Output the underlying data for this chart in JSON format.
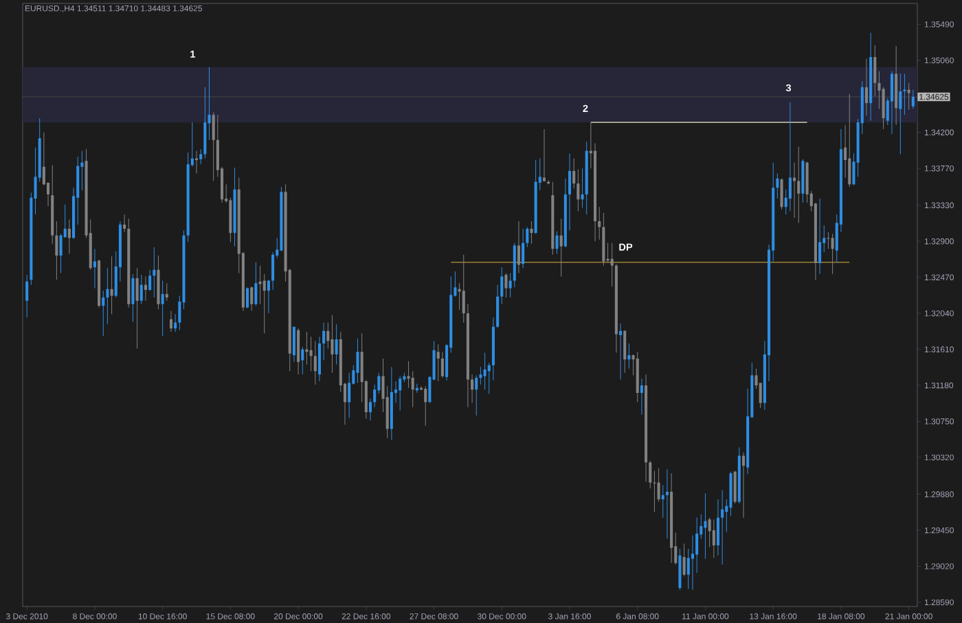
{
  "chart_data": {
    "type": "candlestick",
    "title": "EURUSD.,H4 1.34511 1.34710 1.34483 1.34625",
    "categories": [
      "3 Dec 2010",
      null,
      null,
      null,
      null,
      null,
      null,
      null,
      null,
      null,
      null,
      null,
      null,
      null,
      null,
      null,
      "8 Dec 00:00",
      null,
      null,
      null,
      null,
      null,
      null,
      null,
      null,
      null,
      null,
      null,
      null,
      null,
      null,
      null,
      "10 Dec 16:00",
      null,
      null,
      null,
      null,
      null,
      null,
      null,
      null,
      null,
      null,
      null,
      null,
      null,
      null,
      null,
      "15 Dec 08:00",
      null,
      null,
      null,
      null,
      null,
      null,
      null,
      null,
      null,
      null,
      null,
      null,
      null,
      null,
      null,
      "20 Dec 00:00",
      null,
      null,
      null,
      null,
      null,
      null,
      null,
      null,
      null,
      null,
      null,
      null,
      null,
      null,
      null,
      "22 Dec 16:00",
      null,
      null,
      null,
      null,
      null,
      null,
      null,
      null,
      null,
      null,
      null,
      null,
      null,
      null,
      null,
      "27 Dec 08:00",
      null,
      null,
      null,
      null,
      null,
      null,
      null,
      null,
      null,
      null,
      null,
      null,
      null,
      null,
      null,
      "30 Dec 00:00",
      null,
      null,
      null,
      null,
      null,
      null,
      null,
      null,
      null,
      null,
      null,
      null,
      null,
      null,
      null,
      "3 Jan 16:00",
      null,
      null,
      null,
      null,
      null,
      null,
      null,
      null,
      null,
      null,
      null,
      null,
      null,
      null,
      null,
      "6 Jan 08:00",
      null,
      null,
      null,
      null,
      null,
      null,
      null,
      null,
      null,
      null,
      null,
      null,
      null,
      null,
      null,
      "11 Jan 00:00",
      null,
      null,
      null,
      null,
      null,
      null,
      null,
      null,
      null,
      null,
      null,
      null,
      null,
      null,
      null,
      "13 Jan 16:00",
      null,
      null,
      null,
      null,
      null,
      null,
      null,
      null,
      null,
      null,
      null,
      null,
      null,
      null,
      null,
      "18 Jan 08:00",
      null,
      null,
      null,
      null,
      null,
      null,
      null,
      null,
      null,
      null,
      null,
      null,
      null,
      null,
      null,
      "21 Jan 00:00",
      null
    ],
    "ohlc": [
      [
        1.3219,
        1.325,
        1.3199,
        1.3242
      ],
      [
        1.3244,
        1.3348,
        1.3238,
        1.3342
      ],
      [
        1.3341,
        1.3402,
        1.3322,
        1.3367
      ],
      [
        1.3366,
        1.3437,
        1.3361,
        1.3413
      ],
      [
        1.3379,
        1.342,
        1.3357,
        1.3358
      ],
      [
        1.336,
        1.336,
        1.3332,
        1.3346
      ],
      [
        1.3345,
        1.3381,
        1.3287,
        1.3297
      ],
      [
        1.3297,
        1.3314,
        1.3244,
        1.3273
      ],
      [
        1.3273,
        1.3299,
        1.3252,
        1.3297
      ],
      [
        1.3295,
        1.3334,
        1.3294,
        1.3305
      ],
      [
        1.3305,
        1.3316,
        1.3275,
        1.3294
      ],
      [
        1.3294,
        1.3354,
        1.3293,
        1.3344
      ],
      [
        1.3342,
        1.3391,
        1.331,
        1.338
      ],
      [
        1.3379,
        1.3398,
        1.3351,
        1.3384
      ],
      [
        1.3386,
        1.34,
        1.3294,
        1.3297
      ],
      [
        1.33,
        1.3316,
        1.3256,
        1.3258
      ],
      [
        1.3259,
        1.3281,
        1.3234,
        1.3266
      ],
      [
        1.3267,
        1.3268,
        1.3211,
        1.3213
      ],
      [
        1.3213,
        1.3231,
        1.3177,
        1.3223
      ],
      [
        1.3223,
        1.3258,
        1.3191,
        1.3233
      ],
      [
        1.3233,
        1.3272,
        1.3203,
        1.3225
      ],
      [
        1.3225,
        1.3278,
        1.3223,
        1.326
      ],
      [
        1.3259,
        1.3314,
        1.3242,
        1.331
      ],
      [
        1.331,
        1.3322,
        1.3301,
        1.3305
      ],
      [
        1.3305,
        1.3317,
        1.3211,
        1.3215
      ],
      [
        1.3215,
        1.3251,
        1.3194,
        1.3246
      ],
      [
        1.3246,
        1.3258,
        1.3162,
        1.3219
      ],
      [
        1.3219,
        1.325,
        1.3215,
        1.3238
      ],
      [
        1.3238,
        1.3248,
        1.3219,
        1.3232
      ],
      [
        1.3232,
        1.3256,
        1.3231,
        1.3249
      ],
      [
        1.3249,
        1.3283,
        1.3223,
        1.3256
      ],
      [
        1.3256,
        1.3273,
        1.3209,
        1.3215
      ],
      [
        1.3215,
        1.3243,
        1.3177,
        1.3227
      ],
      [
        1.3227,
        1.324,
        1.3219,
        1.3223
      ],
      [
        1.3197,
        1.3207,
        1.3182,
        1.3186
      ],
      [
        1.3186,
        1.3203,
        1.3182,
        1.3193
      ],
      [
        1.3193,
        1.3225,
        1.3184,
        1.3218
      ],
      [
        1.3217,
        1.3303,
        1.3209,
        1.3297
      ],
      [
        1.3297,
        1.3396,
        1.3289,
        1.3382
      ],
      [
        1.3381,
        1.3432,
        1.3379,
        1.3389
      ],
      [
        1.3389,
        1.3398,
        1.3371,
        1.3387
      ],
      [
        1.3388,
        1.34,
        1.3382,
        1.3394
      ],
      [
        1.3394,
        1.3474,
        1.3389,
        1.3432
      ],
      [
        1.3431,
        1.3498,
        1.3411,
        1.3441
      ],
      [
        1.3441,
        1.3444,
        1.3362,
        1.3411
      ],
      [
        1.3411,
        1.3441,
        1.3367,
        1.3375
      ],
      [
        1.3377,
        1.3379,
        1.3336,
        1.334
      ],
      [
        1.3341,
        1.3358,
        1.3336,
        1.3338
      ],
      [
        1.3339,
        1.3342,
        1.3289,
        1.33
      ],
      [
        1.33,
        1.3378,
        1.3284,
        1.3352
      ],
      [
        1.3352,
        1.3366,
        1.3252,
        1.3275
      ],
      [
        1.3276,
        1.3277,
        1.3207,
        1.3211
      ],
      [
        1.3211,
        1.3235,
        1.321,
        1.3234
      ],
      [
        1.3235,
        1.3236,
        1.3207,
        1.3215
      ],
      [
        1.3215,
        1.3265,
        1.3213,
        1.324
      ],
      [
        1.3242,
        1.3261,
        1.3215,
        1.3239
      ],
      [
        1.3243,
        1.3251,
        1.318,
        1.3231
      ],
      [
        1.3231,
        1.3244,
        1.3204,
        1.3243
      ],
      [
        1.3243,
        1.3277,
        1.3232,
        1.3274
      ],
      [
        1.3273,
        1.3294,
        1.327,
        1.328
      ],
      [
        1.3279,
        1.3355,
        1.3278,
        1.3349
      ],
      [
        1.3349,
        1.3358,
        1.3242,
        1.3254
      ],
      [
        1.3256,
        1.3257,
        1.3135,
        1.3156
      ],
      [
        1.3154,
        1.3188,
        1.3146,
        1.3188
      ],
      [
        1.3184,
        1.3186,
        1.3131,
        1.3146
      ],
      [
        1.3148,
        1.3164,
        1.3131,
        1.3161
      ],
      [
        1.3161,
        1.3182,
        1.3143,
        1.3158
      ],
      [
        1.316,
        1.3176,
        1.3135,
        1.3153
      ],
      [
        1.3153,
        1.3171,
        1.3119,
        1.3135
      ],
      [
        1.3131,
        1.3176,
        1.3123,
        1.3168
      ],
      [
        1.3168,
        1.3193,
        1.3148,
        1.3183
      ],
      [
        1.3183,
        1.3193,
        1.3162,
        1.3171
      ],
      [
        1.3173,
        1.3202,
        1.3133,
        1.3155
      ],
      [
        1.3155,
        1.3191,
        1.3143,
        1.3173
      ],
      [
        1.3173,
        1.3182,
        1.311,
        1.3118
      ],
      [
        1.312,
        1.3121,
        1.3071,
        1.3098
      ],
      [
        1.3098,
        1.3133,
        1.3079,
        1.3121
      ],
      [
        1.312,
        1.3142,
        1.3119,
        1.3136
      ],
      [
        1.3133,
        1.3174,
        1.3121,
        1.3158
      ],
      [
        1.3158,
        1.318,
        1.3098,
        1.3122
      ],
      [
        1.3123,
        1.3124,
        1.3078,
        1.3086
      ],
      [
        1.3086,
        1.3102,
        1.3076,
        1.3098
      ],
      [
        1.3098,
        1.3119,
        1.3092,
        1.3113
      ],
      [
        1.3112,
        1.3133,
        1.3108,
        1.3129
      ],
      [
        1.3129,
        1.315,
        1.3086,
        1.3102
      ],
      [
        1.3104,
        1.3117,
        1.3055,
        1.3066
      ],
      [
        1.3066,
        1.314,
        1.3053,
        1.311
      ],
      [
        1.3109,
        1.3123,
        1.3097,
        1.3113
      ],
      [
        1.3112,
        1.3129,
        1.3088,
        1.3126
      ],
      [
        1.3125,
        1.3133,
        1.3122,
        1.3129
      ],
      [
        1.3129,
        1.3147,
        1.3115,
        1.3126
      ],
      [
        1.3127,
        1.3135,
        1.3092,
        1.3113
      ],
      [
        1.3112,
        1.312,
        1.3109,
        1.3115
      ],
      [
        1.3115,
        1.3117,
        1.3112,
        1.3113
      ],
      [
        1.3114,
        1.3117,
        1.307,
        1.3098
      ],
      [
        1.3098,
        1.3129,
        1.3097,
        1.3128
      ],
      [
        1.3125,
        1.3171,
        1.3124,
        1.316
      ],
      [
        1.3158,
        1.3167,
        1.3123,
        1.315
      ],
      [
        1.315,
        1.3158,
        1.3127,
        1.3129
      ],
      [
        1.3128,
        1.3167,
        1.3124,
        1.3166
      ],
      [
        1.3163,
        1.3248,
        1.3157,
        1.3226
      ],
      [
        1.3225,
        1.3254,
        1.3224,
        1.3235
      ],
      [
        1.3233,
        1.324,
        1.3208,
        1.323
      ],
      [
        1.3231,
        1.3274,
        1.3193,
        1.3204
      ],
      [
        1.3204,
        1.3215,
        1.3092,
        1.3125
      ],
      [
        1.3125,
        1.3131,
        1.3097,
        1.3113
      ],
      [
        1.3113,
        1.313,
        1.3082,
        1.3127
      ],
      [
        1.3127,
        1.314,
        1.3119,
        1.3131
      ],
      [
        1.3129,
        1.3157,
        1.3113,
        1.3137
      ],
      [
        1.3135,
        1.3145,
        1.3108,
        1.3142
      ],
      [
        1.3142,
        1.3199,
        1.3124,
        1.3188
      ],
      [
        1.3188,
        1.3238,
        1.3187,
        1.3224
      ],
      [
        1.3224,
        1.3259,
        1.3215,
        1.3248
      ],
      [
        1.325,
        1.3252,
        1.3223,
        1.3234
      ],
      [
        1.3234,
        1.3252,
        1.3223,
        1.3243
      ],
      [
        1.3243,
        1.3288,
        1.3235,
        1.3285
      ],
      [
        1.3285,
        1.3314,
        1.3252,
        1.3262
      ],
      [
        1.3263,
        1.3305,
        1.3258,
        1.3288
      ],
      [
        1.3288,
        1.3307,
        1.3283,
        1.3305
      ],
      [
        1.3305,
        1.3314,
        1.3287,
        1.33
      ],
      [
        1.33,
        1.3387,
        1.3299,
        1.3361
      ],
      [
        1.336,
        1.3389,
        1.3351,
        1.3367
      ],
      [
        1.3366,
        1.3424,
        1.3361,
        1.3362
      ],
      [
        1.3361,
        1.3363,
        1.3358,
        1.3359
      ],
      [
        1.3345,
        1.3361,
        1.3274,
        1.3281
      ],
      [
        1.3281,
        1.3302,
        1.3275,
        1.3297
      ],
      [
        1.3297,
        1.3317,
        1.3248,
        1.3284
      ],
      [
        1.3284,
        1.3365,
        1.3283,
        1.3346
      ],
      [
        1.3346,
        1.3395,
        1.3303,
        1.3374
      ],
      [
        1.3374,
        1.3389,
        1.3353,
        1.3359
      ],
      [
        1.3359,
        1.3376,
        1.3326,
        1.334
      ],
      [
        1.334,
        1.3377,
        1.333,
        1.3346
      ],
      [
        1.3346,
        1.3409,
        1.3322,
        1.3398
      ],
      [
        1.3398,
        1.3432,
        1.3377,
        1.3395
      ],
      [
        1.3398,
        1.3407,
        1.329,
        1.3314
      ],
      [
        1.3314,
        1.3331,
        1.3292,
        1.3307
      ],
      [
        1.3307,
        1.3324,
        1.3261,
        1.3266
      ],
      [
        1.3267,
        1.3288,
        1.3265,
        1.3269
      ],
      [
        1.3269,
        1.3288,
        1.3236,
        1.3261
      ],
      [
        1.3261,
        1.3263,
        1.3157,
        1.3179
      ],
      [
        1.3178,
        1.3192,
        1.3125,
        1.3183
      ],
      [
        1.3183,
        1.3184,
        1.3133,
        1.3149
      ],
      [
        1.3149,
        1.3168,
        1.3138,
        1.3154
      ],
      [
        1.3154,
        1.3155,
        1.313,
        1.3149
      ],
      [
        1.315,
        1.3158,
        1.3098,
        1.3109
      ],
      [
        1.3109,
        1.3126,
        1.3083,
        1.3118
      ],
      [
        1.3118,
        1.3131,
        1.3003,
        1.3026
      ],
      [
        1.3026,
        1.3028,
        1.2995,
        1.3002
      ],
      [
        1.3002,
        1.3016,
        1.2967,
        1.3001
      ],
      [
        1.3002,
        1.3019,
        1.2979,
        1.2982
      ],
      [
        1.2982,
        1.2999,
        1.296,
        1.2987
      ],
      [
        1.2987,
        1.3018,
        1.2935,
        1.2991
      ],
      [
        1.2991,
        1.3013,
        1.2906,
        1.2924
      ],
      [
        1.2926,
        1.2942,
        1.2904,
        1.2906
      ],
      [
        1.2876,
        1.2923,
        1.2874,
        1.2915
      ],
      [
        1.2913,
        1.2929,
        1.289,
        1.2892
      ],
      [
        1.2892,
        1.2923,
        1.2875,
        1.2912
      ],
      [
        1.2911,
        1.2939,
        1.2874,
        1.2917
      ],
      [
        1.2916,
        1.296,
        1.2894,
        1.2941
      ],
      [
        1.294,
        1.2964,
        1.2935,
        1.295
      ],
      [
        1.2948,
        1.2989,
        1.2911,
        1.2956
      ],
      [
        1.2958,
        1.296,
        1.2925,
        1.2944
      ],
      [
        1.2945,
        1.2958,
        1.2912,
        1.2927
      ],
      [
        1.2927,
        1.2982,
        1.2915,
        1.296
      ],
      [
        1.296,
        1.2993,
        1.2904,
        1.297
      ],
      [
        1.2967,
        1.2982,
        1.2943,
        1.2974
      ],
      [
        1.2972,
        1.3015,
        1.2962,
        1.3013
      ],
      [
        1.3015,
        1.3016,
        1.2977,
        1.2979
      ],
      [
        1.2979,
        1.3044,
        1.2977,
        1.3034
      ],
      [
        1.3034,
        1.3038,
        1.296,
        1.3022
      ],
      [
        1.302,
        1.3114,
        1.3012,
        1.3081
      ],
      [
        1.308,
        1.3145,
        1.3079,
        1.313
      ],
      [
        1.313,
        1.3138,
        1.3114,
        1.3118
      ],
      [
        1.3121,
        1.3121,
        1.3091,
        1.3097
      ],
      [
        1.3097,
        1.3171,
        1.3089,
        1.3155
      ],
      [
        1.3154,
        1.3286,
        1.3123,
        1.328
      ],
      [
        1.3279,
        1.3384,
        1.3266,
        1.3354
      ],
      [
        1.3354,
        1.3371,
        1.3341,
        1.3365
      ],
      [
        1.3364,
        1.3365,
        1.3328,
        1.3331
      ],
      [
        1.3331,
        1.3352,
        1.3322,
        1.3342
      ],
      [
        1.3341,
        1.3456,
        1.3326,
        1.3366
      ],
      [
        1.3366,
        1.3384,
        1.3318,
        1.3362
      ],
      [
        1.3362,
        1.3403,
        1.3312,
        1.3347
      ],
      [
        1.3347,
        1.3388,
        1.3336,
        1.3386
      ],
      [
        1.3384,
        1.3385,
        1.3336,
        1.3346
      ],
      [
        1.3347,
        1.335,
        1.3326,
        1.3332
      ],
      [
        1.3335,
        1.3336,
        1.3244,
        1.3264
      ],
      [
        1.3264,
        1.3341,
        1.3251,
        1.3289
      ],
      [
        1.3288,
        1.3309,
        1.3277,
        1.3294
      ],
      [
        1.3294,
        1.3301,
        1.3281,
        1.3293
      ],
      [
        1.3294,
        1.3299,
        1.3251,
        1.3281
      ],
      [
        1.3279,
        1.3322,
        1.3265,
        1.3312
      ],
      [
        1.331,
        1.3424,
        1.3301,
        1.34
      ],
      [
        1.3402,
        1.3429,
        1.3366,
        1.3387
      ],
      [
        1.3389,
        1.3466,
        1.3355,
        1.3358
      ],
      [
        1.3358,
        1.3395,
        1.3357,
        1.3385
      ],
      [
        1.3384,
        1.3436,
        1.3367,
        1.3432
      ],
      [
        1.3431,
        1.3481,
        1.3418,
        1.3474
      ],
      [
        1.3474,
        1.3508,
        1.344,
        1.3455
      ],
      [
        1.3455,
        1.3539,
        1.3434,
        1.351
      ],
      [
        1.351,
        1.3524,
        1.3463,
        1.3479
      ],
      [
        1.3479,
        1.3493,
        1.3448,
        1.347
      ],
      [
        1.3472,
        1.3474,
        1.3424,
        1.3437
      ],
      [
        1.3434,
        1.3461,
        1.3429,
        1.3458
      ],
      [
        1.3457,
        1.3493,
        1.3418,
        1.349
      ],
      [
        1.349,
        1.3523,
        1.3429,
        1.3449
      ],
      [
        1.3448,
        1.349,
        1.3394,
        1.3469
      ],
      [
        1.3469,
        1.349,
        1.3441,
        1.3471
      ],
      [
        1.3471,
        1.3479,
        1.3447,
        1.3467
      ],
      [
        1.34511,
        1.3471,
        1.34483,
        1.34625
      ]
    ],
    "colors": [
      "#2e8ee4",
      "#2e8ee4",
      "#2e8ee4",
      "#2e8ee4",
      "#828282",
      "#828282",
      "#828282",
      "#828282",
      "#2e8ee4",
      "#2e8ee4",
      "#828282",
      "#2e8ee4",
      "#2e8ee4",
      "#2e8ee4",
      "#828282",
      "#828282",
      "#2e8ee4",
      "#828282",
      "#2e8ee4",
      "#2e8ee4",
      "#828282",
      "#2e8ee4",
      "#2e8ee4",
      "#828282",
      "#828282",
      "#2e8ee4",
      "#828282",
      "#2e8ee4",
      "#828282",
      "#2e8ee4",
      "#2e8ee4",
      "#828282",
      "#2e8ee4",
      "#828282",
      "#828282",
      "#2e8ee4",
      "#2e8ee4",
      "#2e8ee4",
      "#2e8ee4",
      "#2e8ee4",
      "#828282",
      "#2e8ee4",
      "#2e8ee4",
      "#2e8ee4",
      "#828282",
      "#828282",
      "#828282",
      "#828282",
      "#828282",
      "#2e8ee4",
      "#828282",
      "#828282",
      "#2e8ee4",
      "#828282",
      "#2e8ee4",
      "#828282",
      "#828282",
      "#2e8ee4",
      "#2e8ee4",
      "#2e8ee4",
      "#2e8ee4",
      "#828282",
      "#828282",
      "#2e8ee4",
      "#828282",
      "#2e8ee4",
      "#828282",
      "#828282",
      "#828282",
      "#2e8ee4",
      "#2e8ee4",
      "#828282",
      "#828282",
      "#2e8ee4",
      "#828282",
      "#828282",
      "#2e8ee4",
      "#2e8ee4",
      "#2e8ee4",
      "#828282",
      "#828282",
      "#2e8ee4",
      "#2e8ee4",
      "#2e8ee4",
      "#828282",
      "#828282",
      "#2e8ee4",
      "#2e8ee4",
      "#2e8ee4",
      "#2e8ee4",
      "#828282",
      "#828282",
      "#2e8ee4",
      "#828282",
      "#828282",
      "#2e8ee4",
      "#2e8ee4",
      "#828282",
      "#828282",
      "#2e8ee4",
      "#2e8ee4",
      "#2e8ee4",
      "#828282",
      "#828282",
      "#828282",
      "#828282",
      "#2e8ee4",
      "#2e8ee4",
      "#2e8ee4",
      "#2e8ee4",
      "#2e8ee4",
      "#2e8ee4",
      "#2e8ee4",
      "#828282",
      "#2e8ee4",
      "#2e8ee4",
      "#828282",
      "#2e8ee4",
      "#2e8ee4",
      "#828282",
      "#2e8ee4",
      "#2e8ee4",
      "#828282",
      "#828282",
      "#828282",
      "#2e8ee4",
      "#828282",
      "#2e8ee4",
      "#2e8ee4",
      "#828282",
      "#828282",
      "#2e8ee4",
      "#2e8ee4",
      "#828282",
      "#828282",
      "#828282",
      "#828282",
      "#828282",
      "#828282",
      "#828282",
      "#2e8ee4",
      "#828282",
      "#2e8ee4",
      "#828282",
      "#828282",
      "#2e8ee4",
      "#828282",
      "#828282",
      "#828282",
      "#828282",
      "#2e8ee4",
      "#2e8ee4",
      "#828282",
      "#828282",
      "#2e8ee4",
      "#828282",
      "#2e8ee4",
      "#2e8ee4",
      "#2e8ee4",
      "#2e8ee4",
      "#2e8ee4",
      "#828282",
      "#828282",
      "#2e8ee4",
      "#2e8ee4",
      "#2e8ee4",
      "#2e8ee4",
      "#828282",
      "#2e8ee4",
      "#828282",
      "#2e8ee4",
      "#2e8ee4",
      "#828282",
      "#828282",
      "#2e8ee4",
      "#2e8ee4",
      "#2e8ee4",
      "#2e8ee4",
      "#828282",
      "#2e8ee4",
      "#2e8ee4",
      "#828282",
      "#828282",
      "#2e8ee4",
      "#828282",
      "#828282",
      "#828282",
      "#2e8ee4",
      "#2e8ee4",
      "#828282",
      "#828282",
      "#2e8ee4",
      "#2e8ee4",
      "#828282",
      "#828282",
      "#2e8ee4",
      "#2e8ee4",
      "#2e8ee4",
      "#828282",
      "#2e8ee4",
      "#828282",
      "#828282",
      "#828282",
      "#2e8ee4",
      "#2e8ee4",
      "#828282",
      "#2e8ee4",
      "#2e8ee4",
      "#828282",
      "#2e8ee4"
    ],
    "series": [
      {
        "type": "line",
        "color": "#f0ecd0",
        "values": [
          null,
          null,
          null,
          null,
          null,
          null,
          null,
          null,
          null,
          null,
          null,
          null,
          null,
          null,
          null,
          null,
          null,
          null,
          null,
          null,
          null,
          null,
          null,
          null,
          null,
          null,
          null,
          null,
          null,
          null,
          null,
          null,
          null,
          null,
          null,
          null,
          null,
          null,
          null,
          null,
          null,
          null,
          null,
          null,
          null,
          null,
          null,
          null,
          null,
          null,
          null,
          null,
          null,
          null,
          null,
          null,
          null,
          null,
          null,
          null,
          null,
          null,
          null,
          null,
          null,
          null,
          null,
          null,
          null,
          null,
          null,
          null,
          null,
          null,
          null,
          null,
          null,
          null,
          null,
          null,
          null,
          null,
          null,
          null,
          null,
          null,
          null,
          null,
          null,
          null,
          null,
          null,
          null,
          null,
          null,
          null,
          null,
          null,
          null,
          null,
          null,
          null,
          null,
          null,
          null,
          null,
          null,
          null,
          null,
          null,
          null,
          null,
          null,
          null,
          null,
          null,
          null,
          null,
          null,
          null,
          null,
          null,
          null,
          null,
          null,
          null,
          null,
          null,
          null,
          null,
          null,
          null,
          null,
          1.3432,
          1.3432,
          1.3432,
          1.3432,
          1.3432,
          1.3432,
          1.3432,
          1.3432,
          1.3432,
          1.3432,
          1.3432,
          1.3432,
          1.3432,
          1.3432,
          1.3432,
          1.3432,
          1.3432,
          1.3432,
          1.3432,
          1.3432,
          1.3432,
          1.3432,
          1.3432,
          1.3432,
          1.3432,
          1.3432,
          1.3432,
          1.3432,
          1.3432,
          1.3432,
          1.3432,
          1.3432,
          1.3432,
          1.3432,
          1.3432,
          1.3432,
          1.3432,
          1.3432,
          1.3432,
          1.3432,
          1.3432,
          1.3432,
          1.3432,
          1.3432,
          1.3432,
          1.3432,
          1.3432,
          1.3432,
          1.3432,
          1.3432,
          1.3432,
          1.3432,
          null,
          null,
          null,
          null,
          null,
          null,
          null,
          null,
          null,
          null,
          null,
          null,
          null,
          null,
          null,
          null,
          null,
          null,
          null,
          null,
          null,
          null,
          null,
          null,
          null
        ]
      },
      {
        "type": "line",
        "color": "#b8963a",
        "values": [
          null,
          null,
          null,
          null,
          null,
          null,
          null,
          null,
          null,
          null,
          null,
          null,
          null,
          null,
          null,
          null,
          null,
          null,
          null,
          null,
          null,
          null,
          null,
          null,
          null,
          null,
          null,
          null,
          null,
          null,
          null,
          null,
          null,
          null,
          null,
          null,
          null,
          null,
          null,
          null,
          null,
          null,
          null,
          null,
          null,
          null,
          null,
          null,
          null,
          null,
          null,
          null,
          null,
          null,
          null,
          null,
          null,
          null,
          null,
          null,
          null,
          null,
          null,
          null,
          null,
          null,
          null,
          null,
          null,
          null,
          null,
          null,
          null,
          null,
          null,
          null,
          null,
          null,
          null,
          null,
          null,
          null,
          null,
          null,
          null,
          null,
          null,
          null,
          null,
          null,
          null,
          null,
          null,
          null,
          null,
          null,
          null,
          null,
          null,
          null,
          1.3265,
          1.3265,
          1.3265,
          1.3265,
          1.3265,
          1.3265,
          1.3265,
          1.3265,
          1.3265,
          1.3265,
          1.3265,
          1.3265,
          1.3265,
          1.3265,
          1.3265,
          1.3265,
          1.3265,
          1.3265,
          1.3265,
          1.3265,
          1.3265,
          1.3265,
          1.3265,
          1.3265,
          1.3265,
          1.3265,
          1.3265,
          1.3265,
          1.3265,
          1.3265,
          1.3265,
          1.3265,
          1.3265,
          1.3265,
          1.3265,
          1.3265,
          1.3265,
          1.3265,
          1.3265,
          1.3265,
          1.3265,
          1.3265,
          1.3265,
          1.3265,
          1.3265,
          1.3265,
          1.3265,
          1.3265,
          1.3265,
          1.3265,
          1.3265,
          1.3265,
          1.3265,
          1.3265,
          1.3265,
          1.3265,
          1.3265,
          1.3265,
          1.3265,
          1.3265,
          1.3265,
          1.3265,
          1.3265,
          1.3265,
          1.3265,
          1.3265,
          1.3265,
          1.3265,
          1.3265,
          1.3265,
          1.3265,
          1.3265,
          1.3265,
          1.3265,
          1.3265,
          1.3265,
          1.3265,
          1.3265,
          1.3265,
          1.3265,
          1.3265,
          1.3265,
          1.3265,
          1.3265,
          1.3265,
          1.3265,
          1.3265,
          1.3265,
          1.3265,
          1.3265,
          1.3265,
          1.3265,
          1.3265,
          1.3265,
          1.3265,
          null,
          null,
          null,
          null,
          null,
          null,
          null,
          null,
          null,
          null,
          null,
          null,
          null,
          null,
          null
        ]
      }
    ],
    "bands": [
      {
        "axis": "y",
        "from": 1.3432,
        "to": 1.3498,
        "color": "#262638"
      }
    ],
    "ref_lines": [
      {
        "axis": "y",
        "value": 1.34625,
        "label": "1.34625",
        "color": "#474747"
      }
    ],
    "annotations": [
      "1",
      "2",
      "3",
      "DP"
    ],
    "ylim": [
      1.2854,
      1.3574
    ],
    "yticks": [
      {
        "value": 1.2859,
        "label": "1.28590"
      },
      {
        "value": 1.2902,
        "label": "1.29020"
      },
      {
        "value": 1.2945,
        "label": "1.29450"
      },
      {
        "value": 1.2988,
        "label": "1.29880"
      },
      {
        "value": 1.3032,
        "label": "1.30320"
      },
      {
        "value": 1.3075,
        "label": "1.30750"
      },
      {
        "value": 1.3118,
        "label": "1.31180"
      },
      {
        "value": 1.3161,
        "label": "1.31610"
      },
      {
        "value": 1.3204,
        "label": "1.32040"
      },
      {
        "value": 1.3247,
        "label": "1.32470"
      },
      {
        "value": 1.329,
        "label": "1.32900"
      },
      {
        "value": 1.3333,
        "label": "1.33330"
      },
      {
        "value": 1.3377,
        "label": "1.33770"
      },
      {
        "value": 1.342,
        "label": "1.34200"
      },
      {
        "value": 1.3506,
        "label": "1.35060"
      },
      {
        "value": 1.3549,
        "label": "1.35490"
      }
    ]
  }
}
